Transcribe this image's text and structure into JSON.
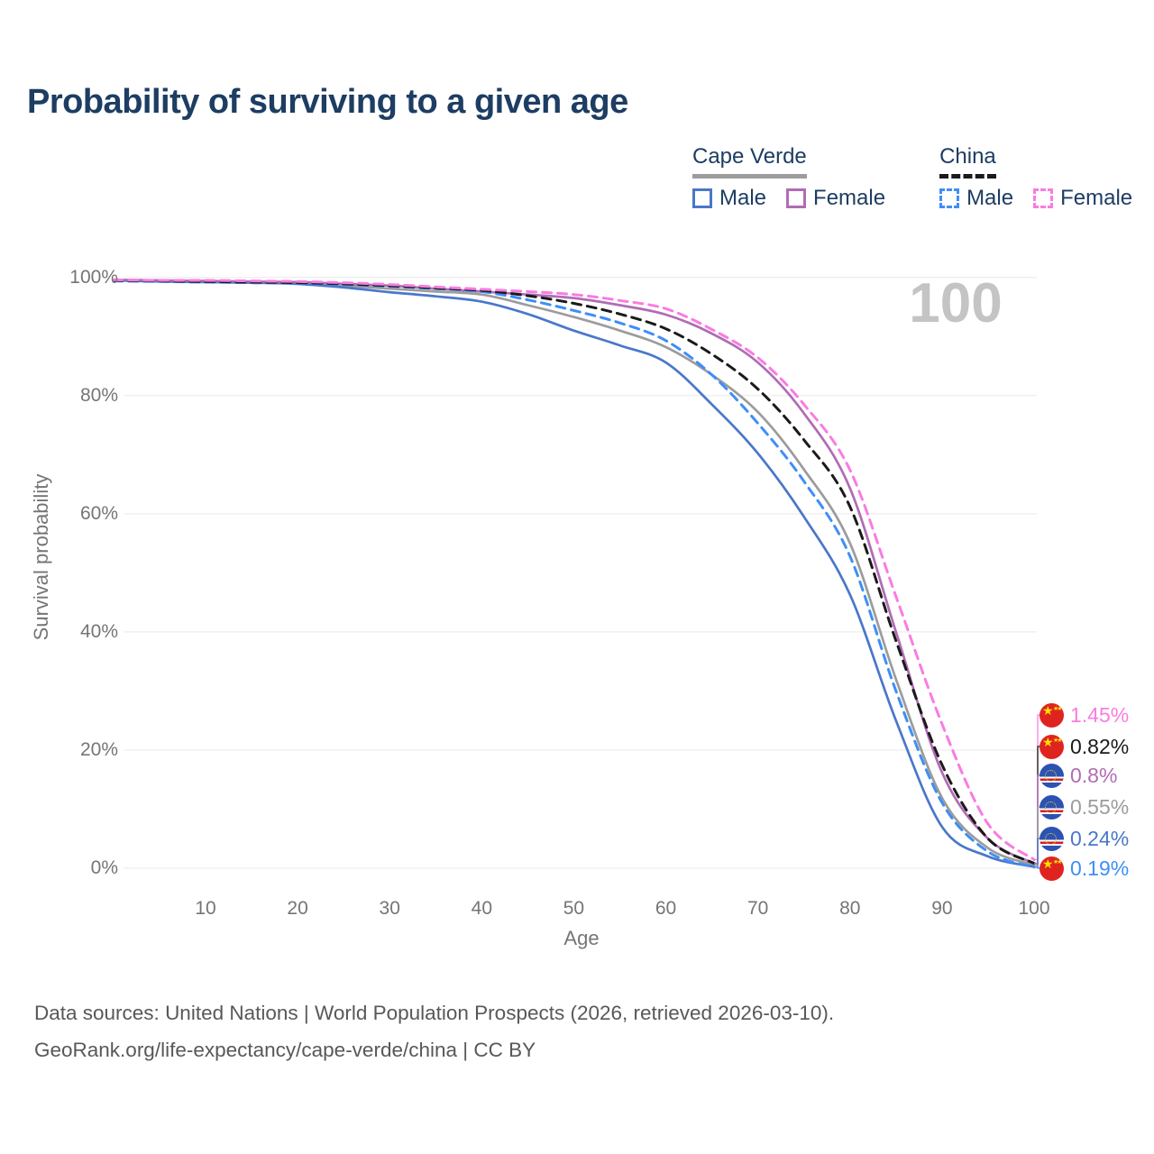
{
  "page": {
    "title": "Probability of surviving to a given age",
    "watermark": "100",
    "footer_line1": "Data sources: United Nations | World Population Prospects (2026, retrieved 2026-03-10).",
    "footer_line2": "GeoRank.org/life-expectancy/cape-verde/china | CC BY"
  },
  "legend": {
    "groups": [
      {
        "label": "Cape Verde",
        "underline_style": "solid",
        "underline_color": "#9c9c9c",
        "items": [
          {
            "label": "Male",
            "color": "#4a77c9",
            "dashed": false
          },
          {
            "label": "Female",
            "color": "#b06cb5",
            "dashed": false
          }
        ]
      },
      {
        "label": "China",
        "underline_style": "dashed",
        "underline_color": "#1a1a1a",
        "items": [
          {
            "label": "Male",
            "color": "#3f8ef7",
            "dashed": true
          },
          {
            "label": "Female",
            "color": "#f97ce1",
            "dashed": true
          }
        ]
      }
    ]
  },
  "chart_data": {
    "type": "line",
    "title": "Probability of surviving to a given age",
    "xlabel": "Age",
    "ylabel": "Survival probability",
    "xlim": [
      0,
      100
    ],
    "ylim": [
      0,
      100
    ],
    "grid": true,
    "x_ticks": [
      10,
      20,
      30,
      40,
      50,
      60,
      70,
      80,
      90,
      100
    ],
    "y_ticks": [
      0,
      20,
      40,
      60,
      80,
      100
    ],
    "y_tick_suffix": "%",
    "ages": [
      0,
      5,
      10,
      15,
      20,
      25,
      30,
      35,
      40,
      45,
      50,
      55,
      60,
      65,
      70,
      75,
      80,
      85,
      90,
      95,
      100
    ],
    "series": [
      {
        "name": "Cape Verde Both sexes",
        "country": "Cape Verde",
        "sex": "Both",
        "color": "#9c9c9c",
        "dashed": false,
        "end_label": "0.55%",
        "values": [
          99.5,
          99.4,
          99.3,
          99.2,
          99.0,
          98.6,
          98.1,
          97.6,
          97.1,
          95.3,
          93.3,
          91.0,
          88.2,
          83.5,
          77.2,
          67.5,
          55.0,
          32.0,
          11.9,
          3.4,
          0.55
        ]
      },
      {
        "name": "Cape Verde Male",
        "country": "Cape Verde",
        "sex": "Male",
        "color": "#4a77c9",
        "dashed": false,
        "end_label": "0.24%",
        "values": [
          99.5,
          99.3,
          99.2,
          99.1,
          98.9,
          98.3,
          97.5,
          96.8,
          95.9,
          93.8,
          91.0,
          88.5,
          85.6,
          78.5,
          70.2,
          59.5,
          46.3,
          25.0,
          7.0,
          2.0,
          0.24
        ]
      },
      {
        "name": "Cape Verde Female",
        "country": "Cape Verde",
        "sex": "Female",
        "color": "#b06cb5",
        "dashed": false,
        "end_label": "0.8%",
        "values": [
          99.6,
          99.5,
          99.4,
          99.3,
          99.2,
          98.9,
          98.6,
          98.1,
          97.6,
          97.1,
          96.5,
          95.3,
          93.7,
          90.5,
          85.6,
          77.0,
          64.3,
          40.0,
          16.2,
          5.0,
          0.8
        ]
      },
      {
        "name": "China Male",
        "country": "China",
        "sex": "Male",
        "color": "#3f8ef7",
        "dashed": true,
        "end_label": "0.19%",
        "values": [
          99.4,
          99.3,
          99.2,
          99.1,
          99.0,
          98.8,
          98.5,
          98.1,
          97.6,
          96.2,
          94.4,
          92.3,
          89.3,
          83.5,
          75.3,
          65.5,
          52.8,
          30.0,
          11.1,
          2.8,
          0.19
        ]
      },
      {
        "name": "China Both sexes",
        "country": "China",
        "sex": "Both",
        "color": "#1a1a1a",
        "dashed": true,
        "end_label": "0.82%",
        "values": [
          99.5,
          99.4,
          99.3,
          99.2,
          99.1,
          98.9,
          98.6,
          98.2,
          97.8,
          96.9,
          95.6,
          93.8,
          91.3,
          87.0,
          81.1,
          72.5,
          61.2,
          38.5,
          17.5,
          5.0,
          0.82
        ]
      },
      {
        "name": "China Female",
        "country": "China",
        "sex": "Female",
        "color": "#f97ce1",
        "dashed": true,
        "end_label": "1.45%",
        "values": [
          99.6,
          99.5,
          99.5,
          99.4,
          99.3,
          99.1,
          98.8,
          98.4,
          98.0,
          97.6,
          97.1,
          96.1,
          94.7,
          91.2,
          86.4,
          78.5,
          67.4,
          46.0,
          24.4,
          7.5,
          1.45
        ]
      }
    ]
  },
  "end_labels": [
    {
      "text": "1.45%",
      "color": "#f97ce1",
      "flag": "china",
      "series": "China Female"
    },
    {
      "text": "0.82%",
      "color": "#1a1a1a",
      "flag": "china",
      "series": "China Both sexes"
    },
    {
      "text": "0.8%",
      "color": "#b06cb5",
      "flag": "cape-verde",
      "series": "Cape Verde Female"
    },
    {
      "text": "0.55%",
      "color": "#9c9c9c",
      "flag": "cape-verde",
      "series": "Cape Verde Both sexes"
    },
    {
      "text": "0.24%",
      "color": "#4a77c9",
      "flag": "cape-verde",
      "series": "Cape Verde Male"
    },
    {
      "text": "0.19%",
      "color": "#3f8ef7",
      "flag": "china",
      "series": "China Male"
    }
  ]
}
